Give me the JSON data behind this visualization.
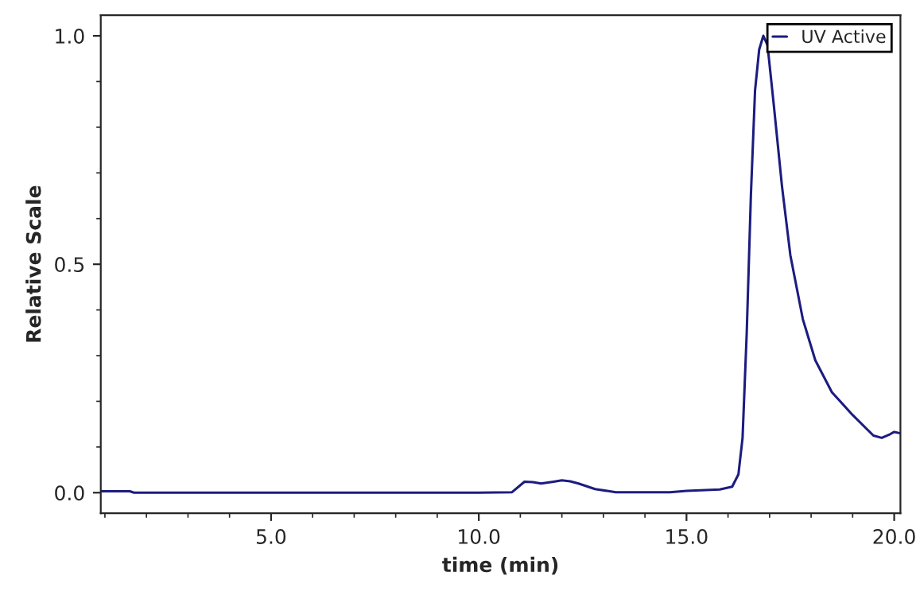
{
  "chart_data": {
    "type": "line",
    "xlabel": "time (min)",
    "ylabel": "Relative Scale",
    "xlim": [
      0.9,
      20.15
    ],
    "ylim": [
      -0.045,
      1.045
    ],
    "xticks": [
      {
        "value": 5,
        "label": "5.0"
      },
      {
        "value": 10,
        "label": "10.0"
      },
      {
        "value": 15,
        "label": "15.0"
      },
      {
        "value": 20,
        "label": "20.0"
      }
    ],
    "yticks": [
      {
        "value": 0,
        "label": "0.0"
      },
      {
        "value": 0.5,
        "label": "0.5"
      },
      {
        "value": 1,
        "label": "1.0"
      }
    ],
    "grid": false,
    "legend": "top right",
    "marker": "none",
    "line_style": "solid",
    "x": [
      0.9,
      1.6,
      1.7,
      5.0,
      10.0,
      10.8,
      11.1,
      11.3,
      11.5,
      11.8,
      12.0,
      12.2,
      12.4,
      12.8,
      13.3,
      14.6,
      15.0,
      15.8,
      16.1,
      16.25,
      16.35,
      16.45,
      16.55,
      16.65,
      16.75,
      16.85,
      16.95,
      17.1,
      17.3,
      17.5,
      17.8,
      18.1,
      18.5,
      19.0,
      19.5,
      19.7,
      19.9,
      20.0,
      20.15
    ],
    "series": [
      {
        "name": "UV Active",
        "color": "#1c1c80",
        "values": [
          0.003,
          0.003,
          0.0,
          0.0,
          0.0,
          0.001,
          0.024,
          0.023,
          0.02,
          0.024,
          0.027,
          0.025,
          0.02,
          0.008,
          0.001,
          0.001,
          0.004,
          0.007,
          0.013,
          0.04,
          0.12,
          0.35,
          0.65,
          0.88,
          0.97,
          1.0,
          0.98,
          0.85,
          0.67,
          0.52,
          0.38,
          0.29,
          0.22,
          0.17,
          0.125,
          0.12,
          0.128,
          0.133,
          0.13
        ]
      }
    ]
  }
}
